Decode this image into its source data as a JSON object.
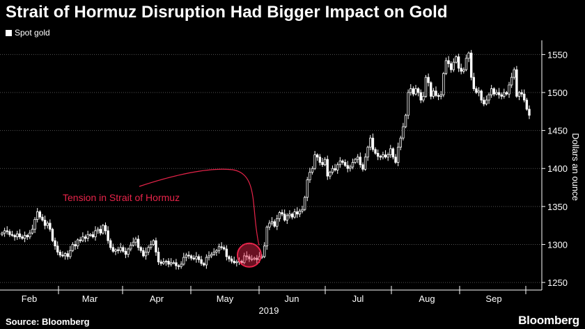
{
  "title": "Strait of Hormuz Disruption Had Bigger Impact on Gold",
  "source": "Source: Bloomberg",
  "brand": "Bloomberg",
  "colors": {
    "background": "#000000",
    "candles": "#ffffff",
    "gridlines": "#555555",
    "annotation": "#e8244a"
  },
  "chart_data": {
    "type": "candlestick",
    "series": [
      {
        "name": "Spot gold"
      }
    ],
    "ylabel": "Dollars an ounce",
    "xlabel": "",
    "ylim": [
      1240,
      1565
    ],
    "y_ticks": [
      1250,
      1300,
      1350,
      1400,
      1450,
      1500,
      1550
    ],
    "x_ticks": [
      "Feb",
      "Mar",
      "Apr",
      "May",
      "Jun",
      "Jul",
      "Aug",
      "Sep"
    ],
    "year_label": "2019",
    "annotation": {
      "text": "Tension in Strait of Hormuz",
      "near": "May"
    },
    "daily_close": [
      1315,
      1318,
      1317,
      1313,
      1312,
      1310,
      1314,
      1310,
      1308,
      1312,
      1310,
      1315,
      1320,
      1333,
      1343,
      1336,
      1332,
      1325,
      1328,
      1320,
      1305,
      1298,
      1290,
      1286,
      1285,
      1288,
      1284,
      1292,
      1300,
      1298,
      1306,
      1305,
      1310,
      1308,
      1313,
      1313,
      1310,
      1318,
      1320,
      1315,
      1325,
      1318,
      1305,
      1296,
      1291,
      1293,
      1292,
      1296,
      1291,
      1287,
      1294,
      1299,
      1303,
      1307,
      1296,
      1292,
      1285,
      1290,
      1296,
      1300,
      1305,
      1290,
      1277,
      1275,
      1277,
      1278,
      1274,
      1276,
      1276,
      1272,
      1271,
      1274,
      1283,
      1286,
      1285,
      1282,
      1281,
      1284,
      1280,
      1275,
      1273,
      1283,
      1285,
      1287,
      1290,
      1292,
      1297,
      1296,
      1294,
      1284,
      1281,
      1278,
      1276,
      1277,
      1278,
      1276,
      1285,
      1284,
      1281,
      1281,
      1282,
      1280,
      1284,
      1284,
      1298,
      1323,
      1328,
      1330,
      1324,
      1334,
      1342,
      1340,
      1332,
      1338,
      1340,
      1336,
      1343,
      1340,
      1344,
      1346,
      1362,
      1385,
      1395,
      1400,
      1418,
      1415,
      1408,
      1405,
      1412,
      1390,
      1395,
      1400,
      1398,
      1405,
      1410,
      1408,
      1404,
      1400,
      1402,
      1408,
      1412,
      1415,
      1405,
      1399,
      1415,
      1428,
      1440,
      1425,
      1420,
      1416,
      1415,
      1418,
      1415,
      1418,
      1426,
      1415,
      1408,
      1428,
      1440,
      1455,
      1470,
      1500,
      1505,
      1498,
      1505,
      1500,
      1490,
      1495,
      1520,
      1513,
      1495,
      1502,
      1496,
      1495,
      1497,
      1525,
      1542,
      1538,
      1530,
      1540,
      1547,
      1532,
      1528,
      1530,
      1545,
      1552,
      1520,
      1505,
      1500,
      1502,
      1490,
      1485,
      1490,
      1497,
      1505,
      1498,
      1500,
      1497,
      1495,
      1500,
      1498,
      1510,
      1520,
      1530,
      1495,
      1500,
      1498,
      1490,
      1478,
      1470
    ]
  }
}
